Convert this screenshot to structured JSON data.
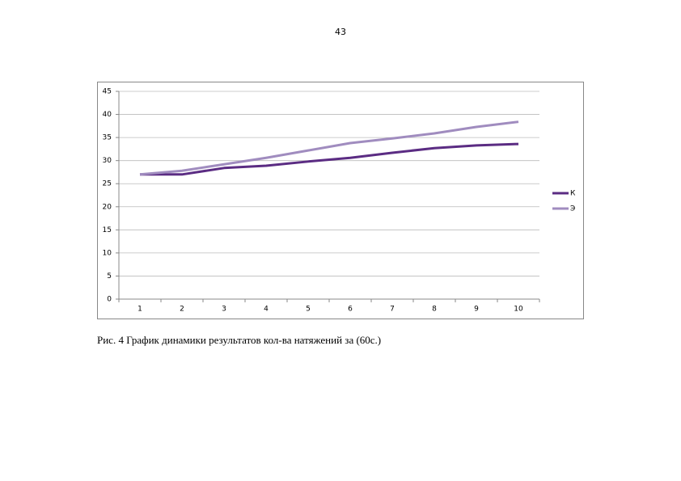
{
  "page_number": "43",
  "chart_data": {
    "type": "line",
    "categories": [
      "1",
      "2",
      "3",
      "4",
      "5",
      "6",
      "7",
      "8",
      "9",
      "10"
    ],
    "series": [
      {
        "name": "К",
        "color": "#5b2c83",
        "values": [
          27.0,
          27.0,
          28.4,
          28.9,
          29.8,
          30.6,
          31.7,
          32.7,
          33.3,
          33.6
        ]
      },
      {
        "name": "Э",
        "color": "#a08cbf",
        "values": [
          27.0,
          27.8,
          29.2,
          30.6,
          32.2,
          33.8,
          34.8,
          35.9,
          37.3,
          38.4
        ]
      }
    ],
    "ylim": [
      0,
      45
    ],
    "yticks": [
      0,
      5,
      10,
      15,
      20,
      25,
      30,
      35,
      40,
      45
    ],
    "grid": true,
    "legend": "right"
  },
  "caption": "Рис. 4 График динамики результатов кол-ва натяжений за (60с.)"
}
